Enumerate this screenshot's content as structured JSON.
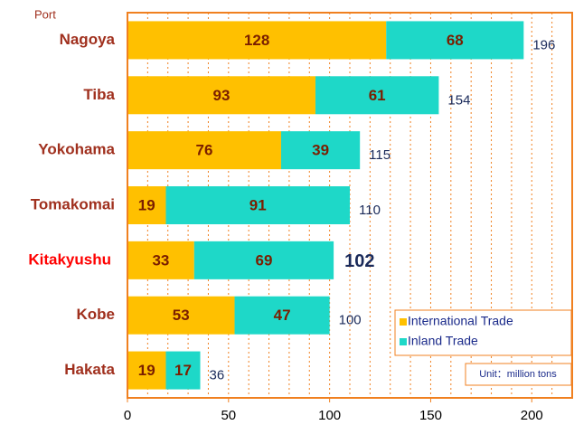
{
  "chart_data": {
    "type": "stacked-barh",
    "y_axis_label": "Port",
    "categories": [
      "Nagoya",
      "Tiba",
      "Yokohama",
      "Tomakomai",
      "Kitakyushu",
      "Kobe",
      "Hakata"
    ],
    "highlight_index": 4,
    "series": [
      {
        "name": "International Trade",
        "color": "#ffc000",
        "values": [
          128,
          93,
          76,
          19,
          33,
          53,
          19
        ]
      },
      {
        "name": "Inland Trade",
        "color": "#1ed8c8",
        "values": [
          68,
          61,
          39,
          91,
          69,
          47,
          17
        ]
      }
    ],
    "totals": [
      196,
      154,
      115,
      110,
      102,
      100,
      36
    ],
    "xlim": [
      0,
      220
    ],
    "xticks": [
      0,
      50,
      100,
      150,
      200
    ],
    "xgrid": [
      10,
      20,
      30,
      40,
      50,
      60,
      70,
      80,
      90,
      100,
      110,
      120,
      130,
      140,
      150,
      160,
      170,
      180,
      190,
      200,
      210
    ],
    "legend": "lower right",
    "annotation": "Unit：million tons"
  }
}
